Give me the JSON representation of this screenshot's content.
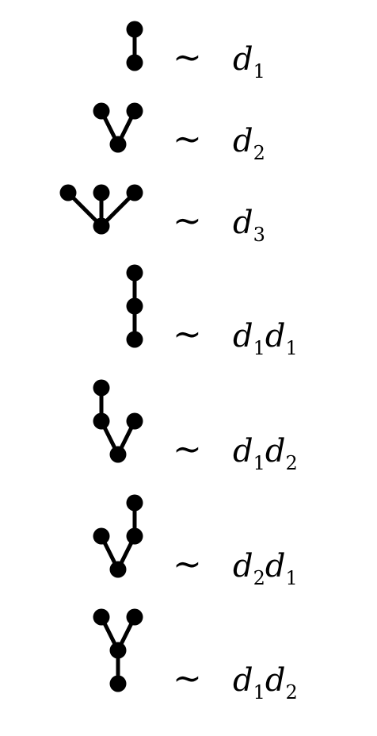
{
  "relation_symbol": "∼",
  "colors": {
    "ink": "#000000",
    "background": "#ffffff"
  },
  "rows": [
    {
      "tree": {
        "nodes": [
          [
            0,
            0
          ],
          [
            0,
            1
          ]
        ],
        "edges": [
          [
            0,
            1
          ]
        ]
      },
      "terms": [
        {
          "letter": "d",
          "sub": "1"
        }
      ]
    },
    {
      "tree": {
        "nodes": [
          [
            0,
            0
          ],
          [
            -1,
            1
          ],
          [
            1,
            1
          ]
        ],
        "edges": [
          [
            0,
            1
          ],
          [
            0,
            2
          ]
        ]
      },
      "terms": [
        {
          "letter": "d",
          "sub": "2"
        }
      ]
    },
    {
      "tree": {
        "nodes": [
          [
            0,
            0
          ],
          [
            -2,
            1
          ],
          [
            0,
            1
          ],
          [
            2,
            1
          ]
        ],
        "edges": [
          [
            0,
            1
          ],
          [
            0,
            2
          ],
          [
            0,
            3
          ]
        ]
      },
      "terms": [
        {
          "letter": "d",
          "sub": "3"
        }
      ]
    },
    {
      "tree": {
        "nodes": [
          [
            0,
            0
          ],
          [
            0,
            1
          ],
          [
            0,
            2
          ]
        ],
        "edges": [
          [
            0,
            1
          ],
          [
            1,
            2
          ]
        ]
      },
      "terms": [
        {
          "letter": "d",
          "sub": "1"
        },
        {
          "letter": "d",
          "sub": "1"
        }
      ]
    },
    {
      "tree": {
        "nodes": [
          [
            0,
            0
          ],
          [
            -1,
            1
          ],
          [
            1,
            1
          ],
          [
            -1,
            2
          ]
        ],
        "edges": [
          [
            0,
            1
          ],
          [
            0,
            2
          ],
          [
            1,
            3
          ]
        ]
      },
      "terms": [
        {
          "letter": "d",
          "sub": "1"
        },
        {
          "letter": "d",
          "sub": "2"
        }
      ]
    },
    {
      "tree": {
        "nodes": [
          [
            0,
            0
          ],
          [
            -1,
            1
          ],
          [
            1,
            1
          ],
          [
            1,
            2
          ]
        ],
        "edges": [
          [
            0,
            1
          ],
          [
            0,
            2
          ],
          [
            2,
            3
          ]
        ]
      },
      "terms": [
        {
          "letter": "d",
          "sub": "2"
        },
        {
          "letter": "d",
          "sub": "1"
        }
      ]
    },
    {
      "tree": {
        "nodes": [
          [
            0,
            0
          ],
          [
            0,
            1
          ],
          [
            -1,
            2
          ],
          [
            1,
            2
          ]
        ],
        "edges": [
          [
            0,
            1
          ],
          [
            1,
            2
          ],
          [
            1,
            3
          ]
        ]
      },
      "terms": [
        {
          "letter": "d",
          "sub": "1"
        },
        {
          "letter": "d",
          "sub": "2"
        }
      ]
    }
  ]
}
